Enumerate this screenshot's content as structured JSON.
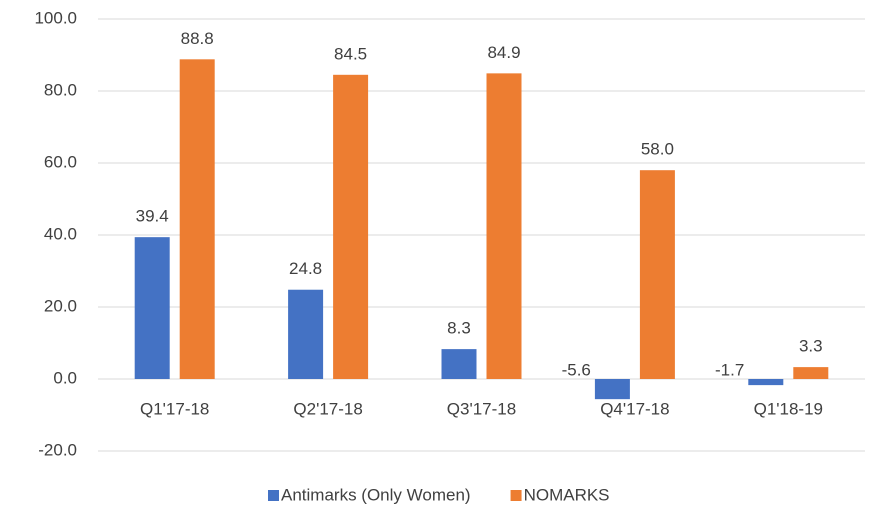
{
  "chart_data": {
    "type": "bar",
    "categories": [
      "Q1'17-18",
      "Q2'17-18",
      "Q3'17-18",
      "Q4'17-18",
      "Q1'18-19"
    ],
    "series": [
      {
        "name": "Antimarks (Only Women)",
        "color": "#4472c4",
        "values": [
          39.4,
          24.8,
          8.3,
          -5.6,
          -1.7
        ],
        "value_labels": [
          "39.4",
          "24.8",
          "8.3",
          "-5.6",
          "-1.7"
        ]
      },
      {
        "name": "NOMARKS",
        "color": "#ed7d31",
        "values": [
          88.8,
          84.5,
          84.9,
          58.0,
          3.3
        ],
        "value_labels": [
          "88.8",
          "84.5",
          "84.9",
          "58.0",
          "3.3"
        ]
      }
    ],
    "ylim": [
      -20,
      100
    ],
    "yticks": [
      {
        "value": -20,
        "label": "-20.0"
      },
      {
        "value": 0,
        "label": "0.0"
      },
      {
        "value": 20,
        "label": "20.0"
      },
      {
        "value": 40,
        "label": "40.0"
      },
      {
        "value": 60,
        "label": "60.0"
      },
      {
        "value": 80,
        "label": "80.0"
      },
      {
        "value": 100,
        "label": "100.0"
      }
    ],
    "grid": true,
    "legend": "bottom"
  }
}
